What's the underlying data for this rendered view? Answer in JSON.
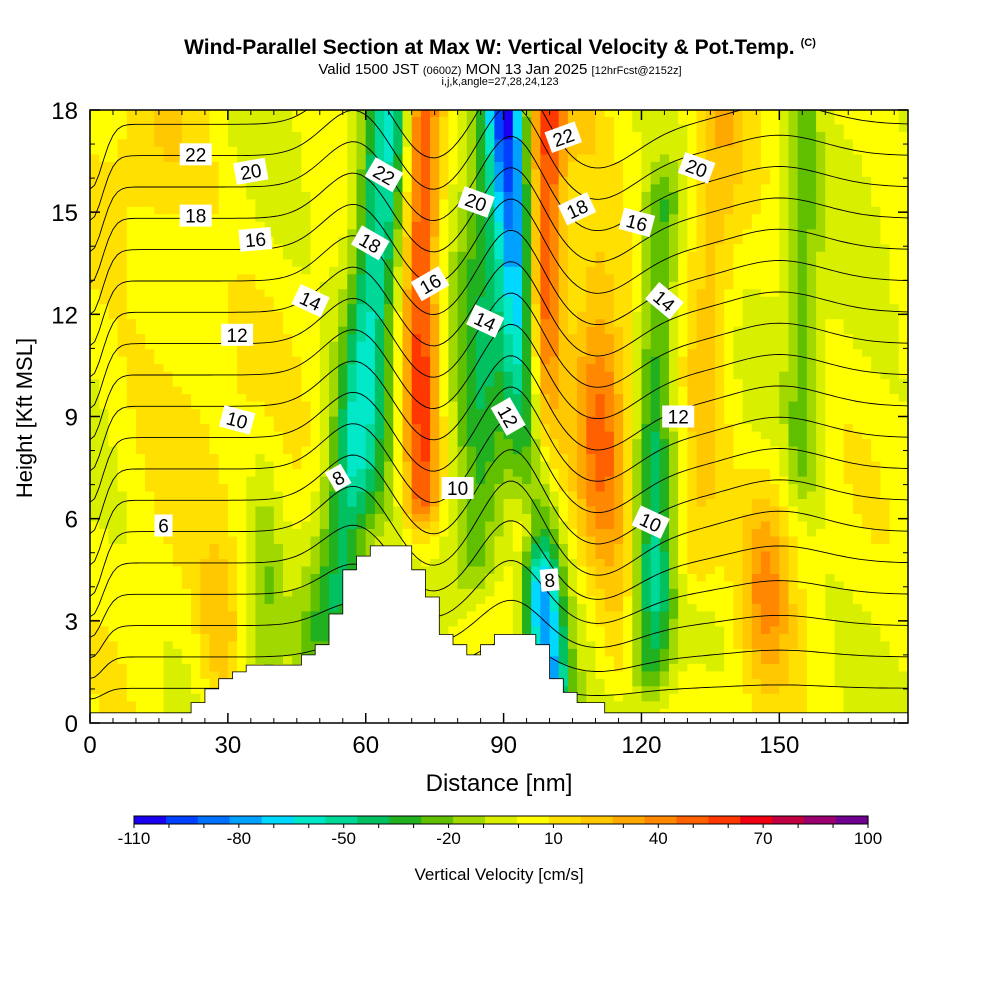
{
  "figure": {
    "title": "Wind-Parallel Section at Max W: Vertical Velocity & Pot.Temp.",
    "title_tag": "(C)",
    "valid_prefix": "Valid 1500 JST",
    "valid_zulu": "(0600Z)",
    "valid_date": "MON 13 Jan 2025",
    "valid_fcst": "[12hrFcst@2152z]",
    "indices": "i,j,k,angle=27,28,24,123"
  },
  "chart_data": {
    "type": "heatmap",
    "xlabel": "Distance [nm]",
    "ylabel": "Height [Kft MSL]",
    "xlim": [
      0,
      178
    ],
    "ylim": [
      0,
      18
    ],
    "xticks": [
      0,
      30,
      60,
      90,
      120,
      150
    ],
    "yticks": [
      0,
      3,
      6,
      9,
      12,
      15,
      18
    ],
    "grid": false,
    "colorbar": {
      "label": "Vertical Velocity [cm/s]",
      "min": -110,
      "max": 100,
      "step": 10,
      "tick_labels": [
        -110,
        -80,
        -50,
        -20,
        10,
        40,
        70,
        100
      ],
      "colors": [
        "#1a00f0",
        "#0040ff",
        "#0070ff",
        "#00a0ff",
        "#00d8ff",
        "#00e8c8",
        "#00d898",
        "#00c060",
        "#20b020",
        "#60c000",
        "#a0d800",
        "#d8f000",
        "#ffff00",
        "#ffe000",
        "#ffc800",
        "#ffa800",
        "#ff8800",
        "#ff6000",
        "#ff3800",
        "#f00010",
        "#c00040",
        "#9a0070",
        "#700090"
      ]
    },
    "features": [
      {
        "name": "updraft-left",
        "x": 63,
        "z": 6.0,
        "w": 35
      },
      {
        "name": "downdraft-left",
        "x": 68,
        "z": 10.0,
        "w": -35
      },
      {
        "name": "updraft-upper-left",
        "x": 76,
        "z": 15.5,
        "w": 60
      },
      {
        "name": "downdraft-mid",
        "x": 94,
        "z": 8.0,
        "w": -75
      },
      {
        "name": "downdraft-deep",
        "x": 96,
        "z": 3.5,
        "w": -100
      },
      {
        "name": "updraft-main",
        "x": 100,
        "z": 16.5,
        "w": 75
      },
      {
        "name": "updraft-right",
        "x": 111,
        "z": 8.5,
        "w": 50
      },
      {
        "name": "downdraft-right",
        "x": 122,
        "z": 6.0,
        "w": -35
      },
      {
        "name": "updraft-far-right",
        "x": 147,
        "z": 4.0,
        "w": 40
      },
      {
        "name": "updraft-near-surface",
        "x": 28,
        "z": 2.5,
        "w": 30
      }
    ],
    "terrain": {
      "x": [
        0,
        22,
        25,
        28,
        31,
        34,
        37,
        40,
        43,
        46,
        49,
        52,
        55,
        58,
        61,
        64,
        67,
        70,
        73,
        76,
        79,
        82,
        85,
        88,
        91,
        94,
        97,
        100,
        103,
        106,
        109,
        112,
        115,
        178
      ],
      "height": [
        0.3,
        0.6,
        1.0,
        1.3,
        1.5,
        1.7,
        1.7,
        1.7,
        1.7,
        2.0,
        2.3,
        3.2,
        4.5,
        4.9,
        5.2,
        5.2,
        5.2,
        4.5,
        3.7,
        2.6,
        2.3,
        2.0,
        2.3,
        2.6,
        2.6,
        2.6,
        2.3,
        1.3,
        0.9,
        0.6,
        0.6,
        0.3,
        0.3,
        0.3
      ]
    },
    "theta_contours": {
      "interval": 1,
      "labeled_levels": [
        6,
        8,
        10,
        12,
        14,
        16,
        18,
        20,
        22
      ],
      "labels": [
        {
          "text": "6",
          "x": 16,
          "z": 5.8,
          "rot": 0
        },
        {
          "text": "8",
          "x": 54,
          "z": 7.2,
          "rot": -30
        },
        {
          "text": "10",
          "x": 32,
          "z": 8.9,
          "rot": 15
        },
        {
          "text": "10",
          "x": 80,
          "z": 6.9,
          "rot": 0
        },
        {
          "text": "10",
          "x": 122,
          "z": 5.9,
          "rot": 25
        },
        {
          "text": "8",
          "x": 100,
          "z": 4.2,
          "rot": -5
        },
        {
          "text": "12",
          "x": 32,
          "z": 11.4,
          "rot": 0
        },
        {
          "text": "12",
          "x": 91,
          "z": 9.0,
          "rot": 60
        },
        {
          "text": "12",
          "x": 128,
          "z": 9.0,
          "rot": 0
        },
        {
          "text": "14",
          "x": 48,
          "z": 12.4,
          "rot": 25
        },
        {
          "text": "14",
          "x": 86,
          "z": 11.8,
          "rot": 25
        },
        {
          "text": "14",
          "x": 125,
          "z": 12.4,
          "rot": 40
        },
        {
          "text": "16",
          "x": 36,
          "z": 14.2,
          "rot": -5
        },
        {
          "text": "16",
          "x": 74,
          "z": 12.9,
          "rot": -30
        },
        {
          "text": "16",
          "x": 119,
          "z": 14.7,
          "rot": 15
        },
        {
          "text": "18",
          "x": 23,
          "z": 14.9,
          "rot": 0
        },
        {
          "text": "18",
          "x": 61,
          "z": 14.1,
          "rot": 30
        },
        {
          "text": "18",
          "x": 106,
          "z": 15.1,
          "rot": -25
        },
        {
          "text": "20",
          "x": 35,
          "z": 16.2,
          "rot": -10
        },
        {
          "text": "20",
          "x": 84,
          "z": 15.3,
          "rot": 20
        },
        {
          "text": "20",
          "x": 132,
          "z": 16.3,
          "rot": 20
        },
        {
          "text": "22",
          "x": 23,
          "z": 16.7,
          "rot": 0
        },
        {
          "text": "22",
          "x": 64,
          "z": 16.1,
          "rot": 30
        },
        {
          "text": "22",
          "x": 103,
          "z": 17.2,
          "rot": -20
        }
      ]
    }
  }
}
